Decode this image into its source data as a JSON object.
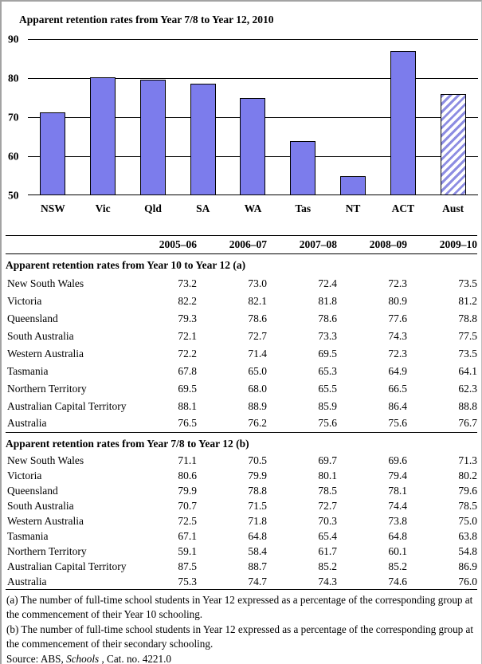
{
  "chart_data": {
    "type": "bar",
    "title": "Apparent retention rates from Year 7/8 to Year 12, 2010",
    "categories": [
      "NSW",
      "Vic",
      "Qld",
      "SA",
      "WA",
      "Tas",
      "NT",
      "ACT",
      "Aust"
    ],
    "values": [
      71.3,
      80.2,
      79.6,
      78.5,
      75.0,
      63.8,
      54.8,
      86.9,
      76.0
    ],
    "hatched_category": "Aust",
    "xlabel": "",
    "ylabel": "",
    "ylim": [
      50,
      90
    ],
    "yticks": [
      90,
      80,
      70,
      60,
      50
    ],
    "grid": true,
    "legend": false,
    "bar_color": "#7c7cec",
    "gridline_color": "#000000"
  },
  "table": {
    "column_headers": [
      "2005–06",
      "2006–07",
      "2007–08",
      "2008–09",
      "2009–10"
    ],
    "sections": [
      {
        "heading": "Apparent retention rates from Year 10 to Year 12 (a)",
        "rows": [
          {
            "label": "New South Wales",
            "values": [
              "73.2",
              "73.0",
              "72.4",
              "72.3",
              "73.5"
            ]
          },
          {
            "label": "Victoria",
            "values": [
              "82.2",
              "82.1",
              "81.8",
              "80.9",
              "81.2"
            ]
          },
          {
            "label": "Queensland",
            "values": [
              "79.3",
              "78.6",
              "78.6",
              "77.6",
              "78.8"
            ]
          },
          {
            "label": "South Australia",
            "values": [
              "72.1",
              "72.7",
              "73.3",
              "74.3",
              "77.5"
            ]
          },
          {
            "label": "Western Australia",
            "values": [
              "72.2",
              "71.4",
              "69.5",
              "72.3",
              "73.5"
            ]
          },
          {
            "label": "Tasmania",
            "values": [
              "67.8",
              "65.0",
              "65.3",
              "64.9",
              "64.1"
            ]
          },
          {
            "label": "Northern Territory",
            "values": [
              "69.5",
              "68.0",
              "65.5",
              "66.5",
              "62.3"
            ]
          },
          {
            "label": "Australian Capital Territory",
            "values": [
              "88.1",
              "88.9",
              "85.9",
              "86.4",
              "88.8"
            ]
          },
          {
            "label": "Australia",
            "values": [
              "76.5",
              "76.2",
              "75.6",
              "75.6",
              "76.7"
            ]
          }
        ]
      },
      {
        "heading": "Apparent retention rates from Year 7/8 to Year 12 (b)",
        "rows": [
          {
            "label": "New South Wales",
            "values": [
              "71.1",
              "70.5",
              "69.7",
              "69.6",
              "71.3"
            ]
          },
          {
            "label": "Victoria",
            "values": [
              "80.6",
              "79.9",
              "80.1",
              "79.4",
              "80.2"
            ]
          },
          {
            "label": "Queensland",
            "values": [
              "79.9",
              "78.8",
              "78.5",
              "78.1",
              "79.6"
            ]
          },
          {
            "label": "South Australia",
            "values": [
              "70.7",
              "71.5",
              "72.7",
              "74.4",
              "78.5"
            ]
          },
          {
            "label": "Western Australia",
            "values": [
              "72.5",
              "71.8",
              "70.3",
              "73.8",
              "75.0"
            ]
          },
          {
            "label": "Tasmania",
            "values": [
              "67.1",
              "64.8",
              "65.4",
              "64.8",
              "63.8"
            ]
          },
          {
            "label": "Northern Territory",
            "values": [
              "59.1",
              "58.4",
              "61.7",
              "60.1",
              "54.8"
            ]
          },
          {
            "label": "Australian Capital Territory",
            "values": [
              "87.5",
              "88.7",
              "85.2",
              "85.2",
              "86.9"
            ]
          },
          {
            "label": "Australia",
            "values": [
              "75.3",
              "74.7",
              "74.3",
              "74.6",
              "76.0"
            ]
          }
        ]
      }
    ]
  },
  "footnotes": [
    "(a) The number of full-time school students in Year 12 expressed as a percentage of the corresponding group at the commencement of their Year 10 schooling.",
    "(b) The number of full-time school students in Year 12 expressed as a percentage of the corresponding group at the commencement of their secondary schooling."
  ],
  "source": {
    "prefix": "Source: ABS, ",
    "italic": "Schools",
    "suffix": " , Cat. no. 4221.0"
  }
}
